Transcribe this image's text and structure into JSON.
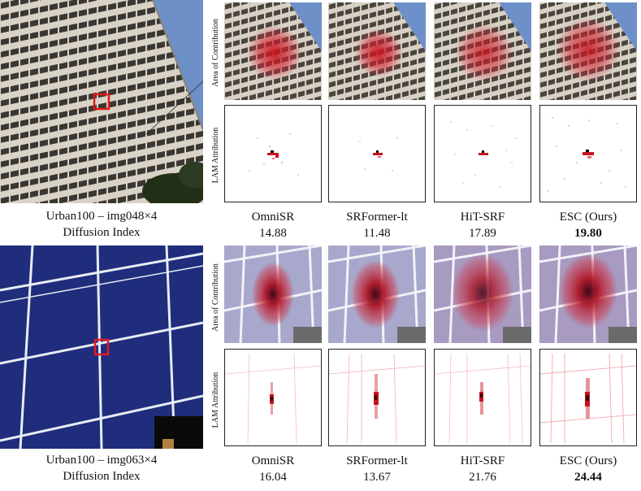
{
  "rows": [
    {
      "caption": "Urban100 – img048×4",
      "metric": "Diffusion Index",
      "contribution_label": "Area of Contribution",
      "attribution_label": "LAM Attribution",
      "methods": [
        {
          "name": "OmniSR",
          "value": "14.88",
          "best": false
        },
        {
          "name": "SRFormer-lt",
          "value": "11.48",
          "best": false
        },
        {
          "name": "HiT-SRF",
          "value": "17.89",
          "best": false
        },
        {
          "name": "ESC (Ours)",
          "value": "19.80",
          "best": true
        }
      ]
    },
    {
      "caption": "Urban100 – img063×4",
      "metric": "Diffusion Index",
      "contribution_label": "Area of Contribution",
      "attribution_label": "LAM Attribution",
      "methods": [
        {
          "name": "OmniSR",
          "value": "16.04",
          "best": false
        },
        {
          "name": "SRFormer-lt",
          "value": "13.67",
          "best": false
        },
        {
          "name": "HiT-SRF",
          "value": "21.76",
          "best": false
        },
        {
          "name": "ESC (Ours)",
          "value": "24.44",
          "best": true
        }
      ]
    }
  ],
  "colors": {
    "building_light": "#d9d2c6",
    "building_dark": "#3a3632",
    "sky": "#6d90c8",
    "panel_blue": "#1f2d7c",
    "frame": "#e8ecf4",
    "highlight_box": "#e01b1b",
    "heat": "#c8141e"
  }
}
